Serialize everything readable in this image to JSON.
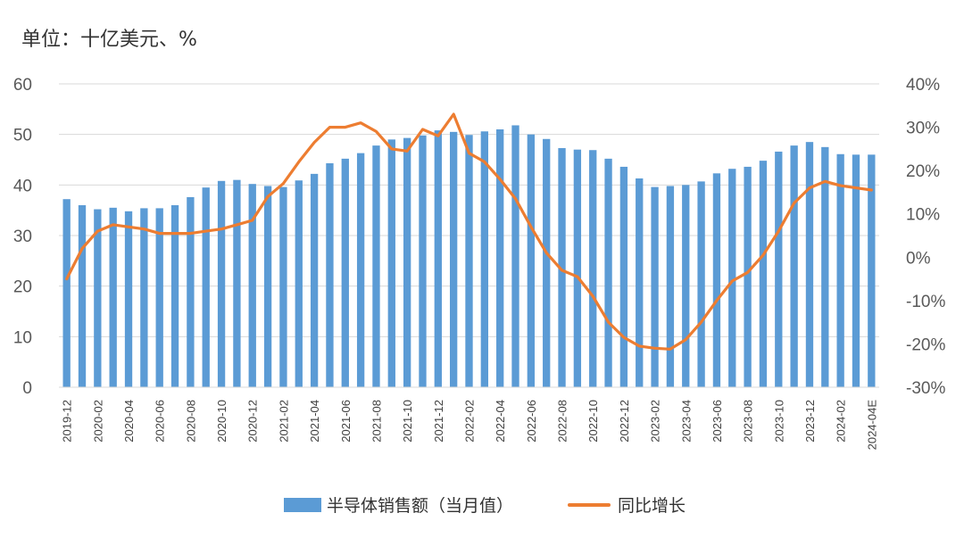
{
  "unit_label": "单位：十亿美元、%",
  "colors": {
    "bar": "#5b9bd5",
    "line": "#ed7d31",
    "grid": "#d9d9d9",
    "text": "#595959"
  },
  "legend": {
    "bar_label": "半导体销售额（当月值）",
    "line_label": "同比增长"
  },
  "chart_data": {
    "type": "bar",
    "categories": [
      "2019-12",
      "2020-01",
      "2020-02",
      "2020-03",
      "2020-04",
      "2020-05",
      "2020-06",
      "2020-07",
      "2020-08",
      "2020-09",
      "2020-10",
      "2020-11",
      "2020-12",
      "2021-01",
      "2021-02",
      "2021-03",
      "2021-04",
      "2021-05",
      "2021-06",
      "2021-07",
      "2021-08",
      "2021-09",
      "2021-10",
      "2021-11",
      "2021-12",
      "2022-01",
      "2022-02",
      "2022-03",
      "2022-04",
      "2022-05",
      "2022-06",
      "2022-07",
      "2022-08",
      "2022-09",
      "2022-10",
      "2022-11",
      "2022-12",
      "2023-01",
      "2023-02",
      "2023-03",
      "2023-04",
      "2023-05",
      "2023-06",
      "2023-07",
      "2023-08",
      "2023-09",
      "2023-10",
      "2023-11",
      "2023-12",
      "2024-01",
      "2024-02",
      "2024-03",
      "2024-04E"
    ],
    "tick_labels": [
      "2019-12",
      "2020-02",
      "2020-04",
      "2020-06",
      "2020-08",
      "2020-10",
      "2020-12",
      "2021-02",
      "2021-04",
      "2021-06",
      "2021-08",
      "2021-10",
      "2021-12",
      "2022-02",
      "2022-04",
      "2022-06",
      "2022-08",
      "2022-10",
      "2022-12",
      "2023-02",
      "2023-04",
      "2023-06",
      "2023-08",
      "2023-10",
      "2023-12",
      "2024-02",
      "2024-04E"
    ],
    "series": [
      {
        "name": "半导体销售额（当月值）",
        "type": "bar",
        "axis": "left",
        "values": [
          37.2,
          36.0,
          35.2,
          35.5,
          34.8,
          35.4,
          35.4,
          36.0,
          37.6,
          39.5,
          40.8,
          41.0,
          40.2,
          39.8,
          39.6,
          40.9,
          42.2,
          44.3,
          45.2,
          46.3,
          47.8,
          49.0,
          49.3,
          49.8,
          50.8,
          50.5,
          49.9,
          50.6,
          51.0,
          51.8,
          50.0,
          49.1,
          47.3,
          47.0,
          46.9,
          45.2,
          43.6,
          41.3,
          39.6,
          39.8,
          40.0,
          40.7,
          42.3,
          43.2,
          43.6,
          44.8,
          46.6,
          47.8,
          48.5,
          47.5,
          46.1,
          46.0,
          46.0
        ]
      },
      {
        "name": "同比增长",
        "type": "line",
        "axis": "right",
        "values": [
          -5.0,
          2.0,
          6.0,
          7.5,
          7.0,
          6.5,
          5.5,
          5.5,
          5.5,
          6.0,
          6.5,
          7.5,
          8.5,
          14.0,
          17.0,
          22.0,
          26.5,
          30.0,
          30.0,
          31.0,
          29.0,
          25.0,
          24.5,
          29.5,
          28.0,
          33.0,
          24.0,
          22.0,
          18.0,
          13.5,
          7.0,
          1.0,
          -3.0,
          -4.5,
          -9.0,
          -15.0,
          -18.5,
          -20.5,
          -21.0,
          -21.2,
          -19.0,
          -15.0,
          -10.0,
          -5.5,
          -3.5,
          0.5,
          6.0,
          12.5,
          16.0,
          17.5,
          16.5,
          16.0,
          15.5
        ]
      }
    ],
    "y_left": {
      "min": 0,
      "max": 60,
      "step": 10,
      "ticks": [
        "0",
        "10",
        "20",
        "30",
        "40",
        "50",
        "60"
      ]
    },
    "y_right": {
      "min": -30,
      "max": 40,
      "step": 10,
      "ticks": [
        "-30%",
        "-20%",
        "-10%",
        "0%",
        "10%",
        "20%",
        "30%",
        "40%"
      ]
    },
    "grid": true,
    "legend_position": "bottom"
  }
}
